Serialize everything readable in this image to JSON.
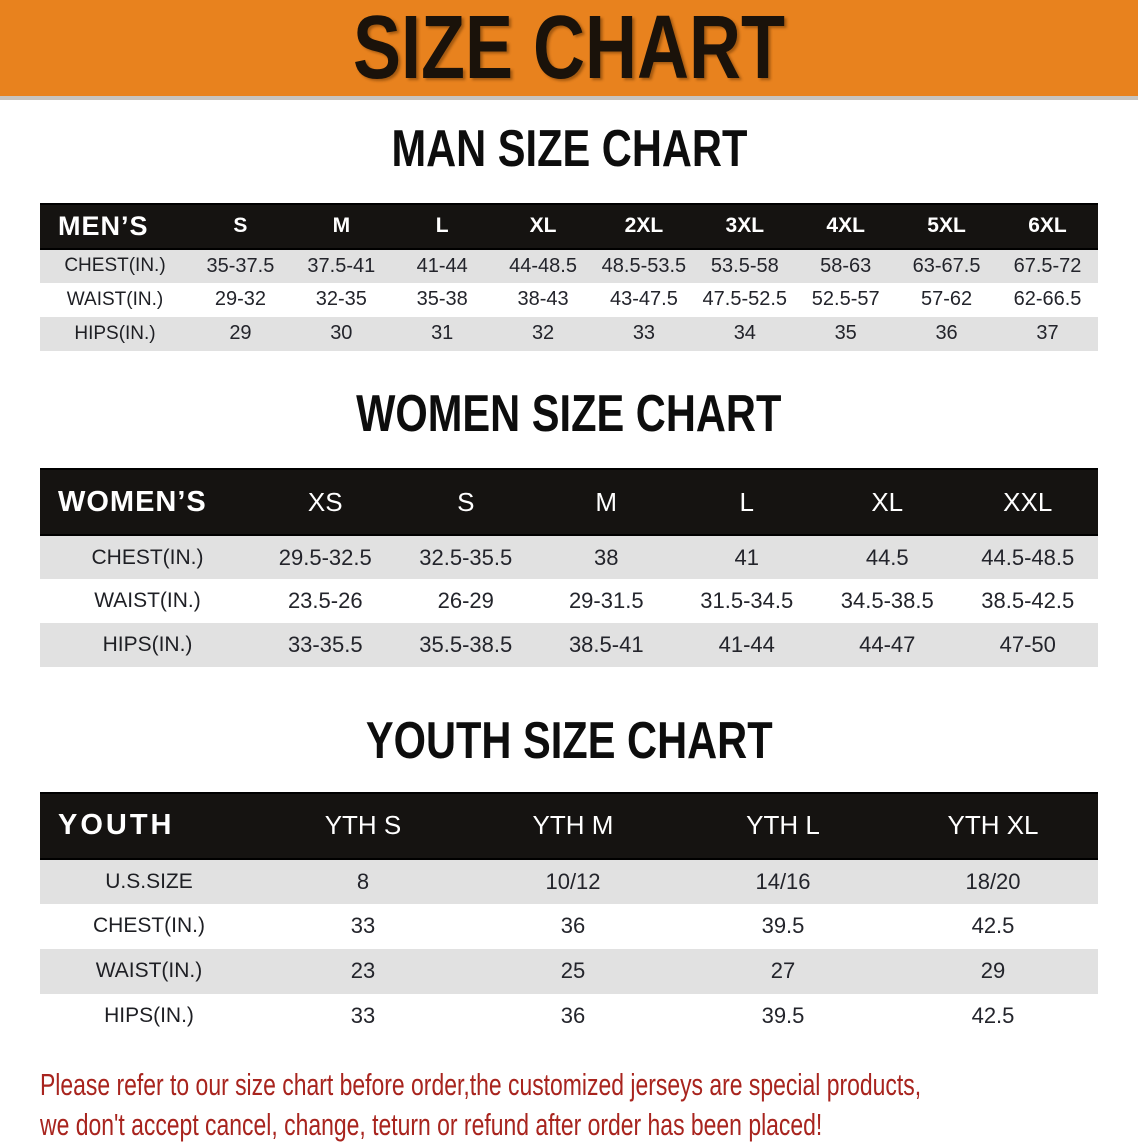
{
  "banner": {
    "title": "SIZE CHART"
  },
  "colors": {
    "banner_bg": "#E8821E",
    "header_bar_bg": "#151311",
    "row_alt_gray": "#E1E1E1",
    "disclaimer_red": "#A8241E"
  },
  "sections": [
    {
      "key": "mens",
      "heading": "MAN SIZE CHART",
      "corner_label": "MEN’S",
      "sizes": [
        "S",
        "M",
        "L",
        "XL",
        "2XL",
        "3XL",
        "4XL",
        "5XL",
        "6XL"
      ],
      "rows": [
        {
          "label": "CHEST(IN.)",
          "values": [
            "35-37.5",
            "37.5-41",
            "41-44",
            "44-48.5",
            "48.5-53.5",
            "53.5-58",
            "58-63",
            "63-67.5",
            "67.5-72"
          ]
        },
        {
          "label": "WAIST(IN.)",
          "values": [
            "29-32",
            "32-35",
            "35-38",
            "38-43",
            "43-47.5",
            "47.5-52.5",
            "52.5-57",
            "57-62",
            "62-66.5"
          ]
        },
        {
          "label": "HIPS(IN.)",
          "values": [
            "29",
            "30",
            "31",
            "32",
            "33",
            "34",
            "35",
            "36",
            "37"
          ]
        }
      ]
    },
    {
      "key": "womens",
      "heading": "WOMEN SIZE CHART",
      "corner_label": "WOMEN’S",
      "sizes": [
        "XS",
        "S",
        "M",
        "L",
        "XL",
        "XXL"
      ],
      "rows": [
        {
          "label": "CHEST(IN.)",
          "values": [
            "29.5-32.5",
            "32.5-35.5",
            "38",
            "41",
            "44.5",
            "44.5-48.5"
          ]
        },
        {
          "label": "WAIST(IN.)",
          "values": [
            "23.5-26",
            "26-29",
            "29-31.5",
            "31.5-34.5",
            "34.5-38.5",
            "38.5-42.5"
          ]
        },
        {
          "label": "HIPS(IN.)",
          "values": [
            "33-35.5",
            "35.5-38.5",
            "38.5-41",
            "41-44",
            "44-47",
            "47-50"
          ]
        }
      ]
    },
    {
      "key": "youth",
      "heading": "YOUTH SIZE CHART",
      "corner_label": "YOUTH",
      "sizes": [
        "YTH S",
        "YTH M",
        "YTH L",
        "YTH XL"
      ],
      "rows": [
        {
          "label": "U.S.SIZE",
          "values": [
            "8",
            "10/12",
            "14/16",
            "18/20"
          ]
        },
        {
          "label": "CHEST(IN.)",
          "values": [
            "33",
            "36",
            "39.5",
            "42.5"
          ]
        },
        {
          "label": "WAIST(IN.)",
          "values": [
            "23",
            "25",
            "27",
            "29"
          ]
        },
        {
          "label": "HIPS(IN.)",
          "values": [
            "33",
            "36",
            "39.5",
            "42.5"
          ]
        }
      ]
    }
  ],
  "disclaimer": {
    "line1": "Please refer to our size chart before order,the customized jerseys are special products,",
    "line2": "we don't accept cancel, change, teturn or refund after order has been placed!"
  }
}
